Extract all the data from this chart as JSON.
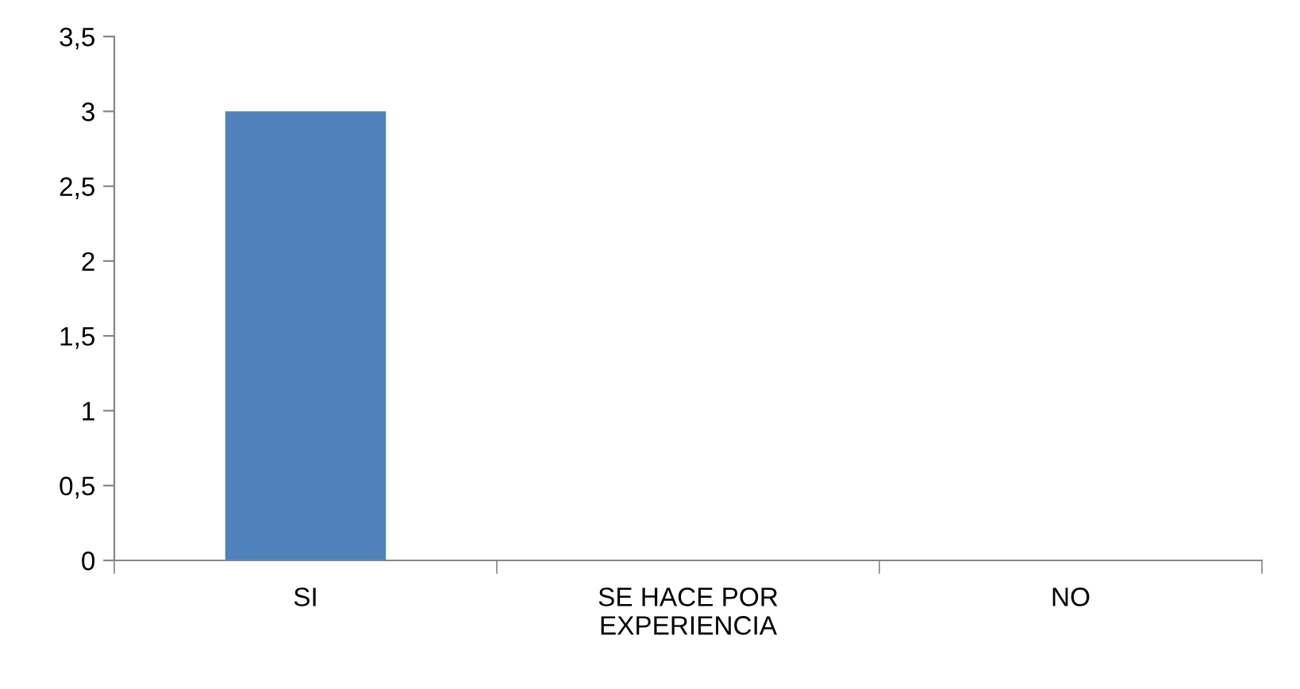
{
  "chart_data": {
    "type": "bar",
    "categories": [
      "SI",
      "SE HACE POR\nEXPERIENCIA",
      "NO"
    ],
    "values": [
      3,
      0,
      0
    ],
    "color": "#4f81bd",
    "ylim": [
      0,
      3.5
    ],
    "yticks": [
      0,
      {
        "value": 0.5,
        "label": "0,5"
      },
      1,
      {
        "value": 1.5,
        "label": "1,5"
      },
      2,
      {
        "value": 2.5,
        "label": "2,5"
      },
      3,
      {
        "value": 3.5,
        "label": "3,5"
      }
    ],
    "grid": false,
    "legend": false
  }
}
